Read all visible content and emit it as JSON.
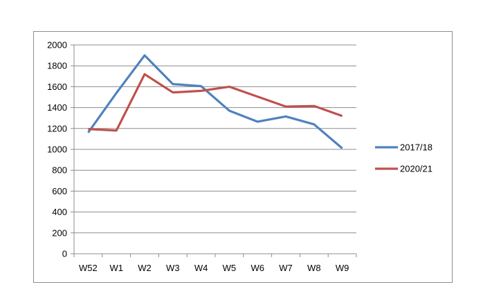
{
  "chart_data": {
    "type": "line",
    "categories": [
      "W52",
      "W1",
      "W2",
      "W3",
      "W4",
      "W5",
      "W6",
      "W7",
      "W8",
      "W9"
    ],
    "series": [
      {
        "name": "2017/18",
        "color": "#4f81bd",
        "values": [
          1160,
          1540,
          1900,
          1625,
          1605,
          1370,
          1265,
          1315,
          1240,
          1010
        ]
      },
      {
        "name": "2020/21",
        "color": "#c0504d",
        "values": [
          1195,
          1180,
          1720,
          1545,
          1560,
          1600,
          1505,
          1410,
          1415,
          1320
        ]
      }
    ],
    "ylim": [
      0,
      2000
    ],
    "yticks": [
      "0",
      "200",
      "400",
      "600",
      "800",
      "1000",
      "1200",
      "1400",
      "1600",
      "1800",
      "2000"
    ],
    "grid": true,
    "legend": "right"
  }
}
